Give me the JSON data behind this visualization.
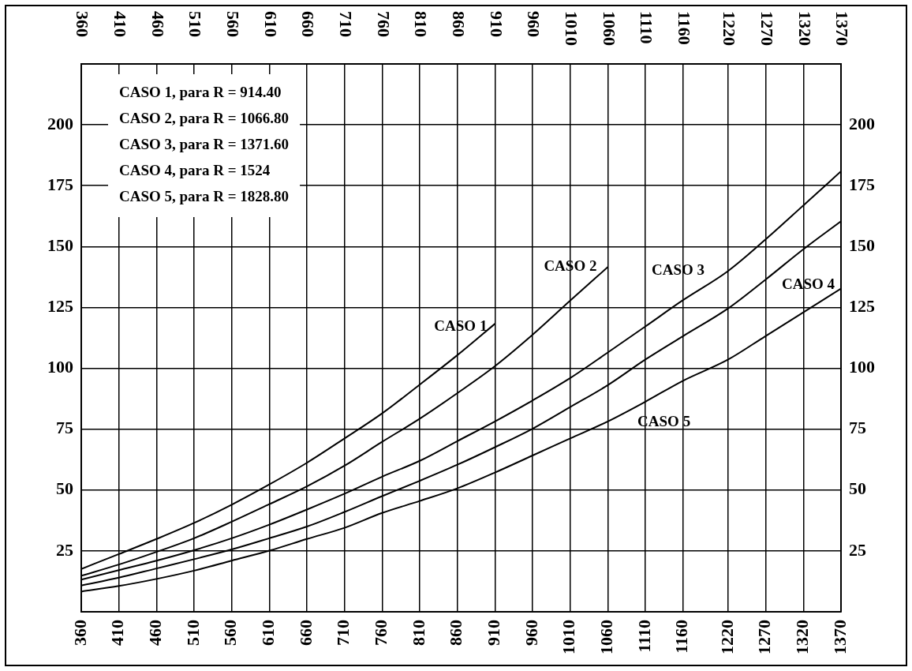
{
  "chart_data": {
    "type": "line",
    "xlim": [
      360,
      1370
    ],
    "x2lim": [
      360,
      1370
    ],
    "ylim": [
      0,
      225
    ],
    "y2lim": [
      0,
      225
    ],
    "xticks": [
      360,
      410,
      460,
      510,
      560,
      610,
      660,
      710,
      760,
      810,
      860,
      910,
      960,
      1010,
      1060,
      1110,
      1160,
      1220,
      1270,
      1320,
      1370
    ],
    "x2ticks": [
      360,
      410,
      460,
      510,
      560,
      610,
      660,
      710,
      760,
      810,
      860,
      910,
      960,
      1010,
      1060,
      1110,
      1160,
      1220,
      1270,
      1320,
      1370
    ],
    "yticks": [
      25,
      50,
      75,
      100,
      125,
      150,
      175,
      200
    ],
    "y2ticks": [
      25,
      50,
      75,
      100,
      125,
      150,
      175,
      200
    ],
    "grid": true,
    "series": [
      {
        "color": "#000000",
        "x": [
          360,
          410,
          460,
          510,
          560,
          610,
          660,
          710,
          760,
          810,
          860,
          910
        ],
        "values": [
          17.6,
          23.7,
          29.9,
          36.5,
          44,
          52.3,
          61.2,
          71.2,
          81.5,
          93.3,
          105.4,
          118.3
        ]
      },
      {
        "color": "#000000",
        "x": [
          360,
          410,
          460,
          510,
          560,
          610,
          660,
          710,
          760,
          810,
          860,
          910,
          960,
          1010,
          1060
        ],
        "values": [
          14.8,
          19.4,
          24.6,
          30.2,
          37,
          44.2,
          51.5,
          60,
          69.8,
          79.3,
          89.8,
          100.9,
          113.8,
          127.8,
          141.6
        ]
      },
      {
        "color": "#000000",
        "x": [
          360,
          410,
          460,
          510,
          560,
          610,
          660,
          710,
          760,
          810,
          860,
          910,
          960,
          1010,
          1060,
          1110,
          1160,
          1220,
          1270,
          1320,
          1370
        ],
        "values": [
          13.2,
          17.1,
          21,
          25.3,
          30.2,
          35.8,
          42,
          48.5,
          55.5,
          62,
          70.1,
          78.2,
          86.8,
          96,
          106.5,
          117.2,
          128,
          140,
          153,
          166.9,
          180.9
        ]
      },
      {
        "color": "#000000",
        "x": [
          360,
          410,
          460,
          510,
          560,
          610,
          660,
          710,
          760,
          810,
          860,
          910,
          960,
          1010,
          1060,
          1110,
          1160,
          1220,
          1270,
          1320,
          1370
        ],
        "values": [
          10.8,
          14,
          17.8,
          21.6,
          25.6,
          30.2,
          35,
          41,
          47.5,
          53.8,
          60.4,
          67.6,
          75.2,
          84.1,
          93.1,
          103.6,
          113.2,
          124.6,
          136.5,
          148.9,
          160.4
        ]
      },
      {
        "color": "#000000",
        "x": [
          360,
          410,
          460,
          510,
          560,
          610,
          660,
          710,
          760,
          810,
          860,
          910,
          960,
          1010,
          1060,
          1110,
          1160,
          1220,
          1270,
          1320,
          1370
        ],
        "values": [
          8.3,
          10.6,
          13.5,
          16.9,
          21,
          25.1,
          29.9,
          34.5,
          40.6,
          45.5,
          50.7,
          57.2,
          64.2,
          71.2,
          78.2,
          86.3,
          94.9,
          103.6,
          113.3,
          123,
          132.7
        ]
      }
    ],
    "annotations": [
      "CASO 1, para R = 914.40",
      "CASO 2, para R = 1066.80",
      "CASO 3, para R = 1371.60",
      "CASO 4, para R = 1524",
      "CASO 5, para R = 1828.80",
      {
        "text": "CASO 1",
        "x": 910,
        "y": 118.3
      },
      {
        "text": "CASO 2",
        "x": 1060,
        "y": 141.6
      },
      {
        "text": "CASO 3",
        "x": 1220,
        "y": 140
      },
      {
        "text": "CASO 4",
        "x": 1370,
        "y": 132.7
      },
      {
        "text": "CASO 5",
        "x": 1110,
        "y": 86.3
      }
    ]
  }
}
